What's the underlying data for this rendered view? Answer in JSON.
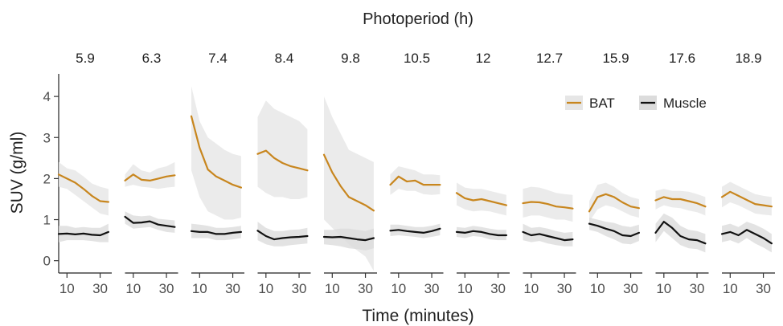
{
  "chart_data": {
    "type": "line",
    "title": "Photoperiod (h)",
    "xlabel": "Time (minutes)",
    "ylabel": "SUV (g/ml)",
    "ylim": [
      -0.3,
      4.55
    ],
    "xlim": [
      5,
      37
    ],
    "x_ticks": [
      10,
      30
    ],
    "x_tick_labels": [
      "10",
      "30"
    ],
    "y_ticks": [
      0,
      1,
      2,
      3,
      4
    ],
    "y_tick_labels": [
      "0",
      "1",
      "2",
      "3",
      "4"
    ],
    "grid": false,
    "legend_position": "top-right",
    "x": [
      5,
      10,
      15,
      20,
      25,
      30,
      35
    ],
    "series": [
      {
        "name": "BAT",
        "color": "#C8861E",
        "band_color": "#E6E6E6"
      },
      {
        "name": "Muscle",
        "color": "#111111",
        "band_color": "#DCDCDC"
      }
    ],
    "panels": [
      {
        "label": "5.9",
        "bat": [
          2.1,
          2.0,
          1.9,
          1.75,
          1.58,
          1.45,
          1.43
        ],
        "bat_lo": [
          1.8,
          1.75,
          1.6,
          1.45,
          1.3,
          1.15,
          1.1
        ],
        "bat_hi": [
          2.4,
          2.25,
          2.2,
          2.05,
          1.88,
          1.8,
          1.75
        ],
        "muscle": [
          0.65,
          0.66,
          0.64,
          0.66,
          0.63,
          0.62,
          0.7
        ],
        "muscle_lo": [
          0.45,
          0.5,
          0.5,
          0.5,
          0.48,
          0.45,
          0.45
        ],
        "muscle_hi": [
          0.85,
          0.85,
          0.8,
          0.82,
          0.8,
          0.8,
          0.9
        ]
      },
      {
        "label": "6.3",
        "bat": [
          1.95,
          2.1,
          1.97,
          1.95,
          2.0,
          2.05,
          2.08
        ],
        "bat_lo": [
          1.8,
          1.85,
          1.8,
          1.78,
          1.75,
          1.78,
          1.8
        ],
        "bat_hi": [
          2.1,
          2.35,
          2.2,
          2.15,
          2.25,
          2.3,
          2.4
        ],
        "muscle": [
          1.07,
          0.92,
          0.93,
          0.96,
          0.88,
          0.85,
          0.82
        ],
        "muscle_lo": [
          0.9,
          0.78,
          0.8,
          0.82,
          0.75,
          0.7,
          0.68
        ],
        "muscle_hi": [
          1.2,
          1.1,
          1.08,
          1.1,
          1.02,
          1.0,
          0.98
        ]
      },
      {
        "label": "7.4",
        "bat": [
          3.52,
          2.75,
          2.22,
          2.05,
          1.95,
          1.85,
          1.78
        ],
        "bat_lo": [
          2.2,
          1.55,
          1.2,
          1.1,
          1.0,
          1.0,
          1.05
        ],
        "bat_hi": [
          4.25,
          3.4,
          3.0,
          2.85,
          2.7,
          2.6,
          2.55
        ],
        "muscle": [
          0.72,
          0.7,
          0.7,
          0.65,
          0.65,
          0.68,
          0.7
        ],
        "muscle_lo": [
          0.55,
          0.55,
          0.55,
          0.5,
          0.5,
          0.52,
          0.55
        ],
        "muscle_hi": [
          0.9,
          0.88,
          0.85,
          0.8,
          0.8,
          0.82,
          0.85
        ]
      },
      {
        "label": "8.4",
        "bat": [
          2.6,
          2.68,
          2.5,
          2.38,
          2.3,
          2.25,
          2.2
        ],
        "bat_lo": [
          1.8,
          1.65,
          1.55,
          1.55,
          1.5,
          1.5,
          1.55
        ],
        "bat_hi": [
          3.5,
          3.9,
          3.7,
          3.6,
          3.5,
          3.4,
          3.2
        ],
        "muscle": [
          0.73,
          0.6,
          0.52,
          0.55,
          0.57,
          0.58,
          0.6
        ],
        "muscle_lo": [
          0.5,
          0.4,
          0.35,
          0.35,
          0.38,
          0.4,
          0.42
        ],
        "muscle_hi": [
          0.95,
          0.8,
          0.72,
          0.72,
          0.75,
          0.76,
          0.8
        ]
      },
      {
        "label": "9.8",
        "bat": [
          2.58,
          2.15,
          1.82,
          1.55,
          1.45,
          1.35,
          1.22
        ],
        "bat_lo": [
          1.0,
          0.8,
          0.6,
          0.4,
          0.25,
          0.1,
          -0.25
        ],
        "bat_hi": [
          4.0,
          3.5,
          3.1,
          2.7,
          2.6,
          2.5,
          2.4
        ],
        "muscle": [
          0.58,
          0.57,
          0.58,
          0.55,
          0.52,
          0.5,
          0.55
        ],
        "muscle_lo": [
          0.4,
          0.38,
          0.35,
          0.3,
          0.28,
          0.25,
          0.3
        ],
        "muscle_hi": [
          0.75,
          0.75,
          0.78,
          0.78,
          0.75,
          0.72,
          0.78
        ]
      },
      {
        "label": "10.5",
        "bat": [
          1.85,
          2.05,
          1.93,
          1.95,
          1.85,
          1.85,
          1.85
        ],
        "bat_lo": [
          1.6,
          1.75,
          1.7,
          1.7,
          1.62,
          1.6,
          1.62
        ],
        "bat_hi": [
          2.1,
          2.3,
          2.25,
          2.2,
          2.1,
          2.1,
          2.08
        ],
        "muscle": [
          0.73,
          0.75,
          0.72,
          0.7,
          0.68,
          0.72,
          0.78
        ],
        "muscle_lo": [
          0.6,
          0.62,
          0.6,
          0.58,
          0.55,
          0.58,
          0.62
        ],
        "muscle_hi": [
          0.88,
          0.88,
          0.85,
          0.82,
          0.82,
          0.85,
          0.9
        ]
      },
      {
        "label": "12",
        "bat": [
          1.65,
          1.52,
          1.47,
          1.5,
          1.45,
          1.4,
          1.35
        ],
        "bat_lo": [
          1.35,
          1.25,
          1.2,
          1.22,
          1.2,
          1.15,
          1.1
        ],
        "bat_hi": [
          1.9,
          1.78,
          1.75,
          1.75,
          1.7,
          1.65,
          1.6
        ],
        "muscle": [
          0.7,
          0.68,
          0.72,
          0.7,
          0.65,
          0.62,
          0.62
        ],
        "muscle_lo": [
          0.58,
          0.55,
          0.6,
          0.58,
          0.52,
          0.5,
          0.5
        ],
        "muscle_hi": [
          0.82,
          0.8,
          0.85,
          0.82,
          0.78,
          0.75,
          0.75
        ]
      },
      {
        "label": "12.7",
        "bat": [
          1.4,
          1.43,
          1.42,
          1.38,
          1.32,
          1.3,
          1.27
        ],
        "bat_lo": [
          1.05,
          1.1,
          1.1,
          1.05,
          1.0,
          1.0,
          0.95
        ],
        "bat_hi": [
          1.75,
          1.8,
          1.78,
          1.72,
          1.65,
          1.62,
          1.6
        ],
        "muscle": [
          0.7,
          0.62,
          0.65,
          0.6,
          0.55,
          0.5,
          0.52
        ],
        "muscle_lo": [
          0.5,
          0.45,
          0.48,
          0.42,
          0.38,
          0.35,
          0.35
        ],
        "muscle_hi": [
          0.9,
          0.8,
          0.82,
          0.78,
          0.72,
          0.68,
          0.7
        ]
      },
      {
        "label": "15.9",
        "bat": [
          1.2,
          1.55,
          1.62,
          1.55,
          1.42,
          1.32,
          1.28
        ],
        "bat_lo": [
          0.95,
          1.25,
          1.35,
          1.3,
          1.2,
          1.1,
          1.05
        ],
        "bat_hi": [
          1.45,
          1.85,
          1.9,
          1.8,
          1.65,
          1.55,
          1.5
        ],
        "muscle": [
          0.9,
          0.85,
          0.78,
          0.72,
          0.62,
          0.6,
          0.68
        ],
        "muscle_lo": [
          0.75,
          0.7,
          0.6,
          0.52,
          0.42,
          0.4,
          0.48
        ],
        "muscle_hi": [
          1.05,
          1.0,
          0.95,
          0.92,
          0.85,
          0.82,
          0.88
        ]
      },
      {
        "label": "17.6",
        "bat": [
          1.47,
          1.55,
          1.5,
          1.5,
          1.45,
          1.4,
          1.32
        ],
        "bat_lo": [
          1.25,
          1.35,
          1.3,
          1.28,
          1.22,
          1.18,
          1.1
        ],
        "bat_hi": [
          1.7,
          1.75,
          1.7,
          1.7,
          1.68,
          1.62,
          1.55
        ],
        "muscle": [
          0.68,
          0.95,
          0.8,
          0.6,
          0.52,
          0.5,
          0.42
        ],
        "muscle_lo": [
          0.45,
          0.72,
          0.55,
          0.38,
          0.3,
          0.28,
          0.2
        ],
        "muscle_hi": [
          0.9,
          1.15,
          1.05,
          0.85,
          0.75,
          0.72,
          0.65
        ]
      },
      {
        "label": "18.9",
        "bat": [
          1.55,
          1.68,
          1.58,
          1.48,
          1.38,
          1.35,
          1.32
        ],
        "bat_lo": [
          1.3,
          1.42,
          1.35,
          1.25,
          1.15,
          1.12,
          1.1
        ],
        "bat_hi": [
          1.8,
          1.92,
          1.82,
          1.72,
          1.62,
          1.58,
          1.55
        ],
        "muscle": [
          0.65,
          0.7,
          0.62,
          0.75,
          0.65,
          0.55,
          0.42
        ],
        "muscle_lo": [
          0.45,
          0.5,
          0.42,
          0.55,
          0.42,
          0.32,
          0.2
        ],
        "muscle_hi": [
          0.85,
          0.9,
          0.82,
          0.95,
          0.88,
          0.78,
          0.65
        ]
      }
    ]
  }
}
